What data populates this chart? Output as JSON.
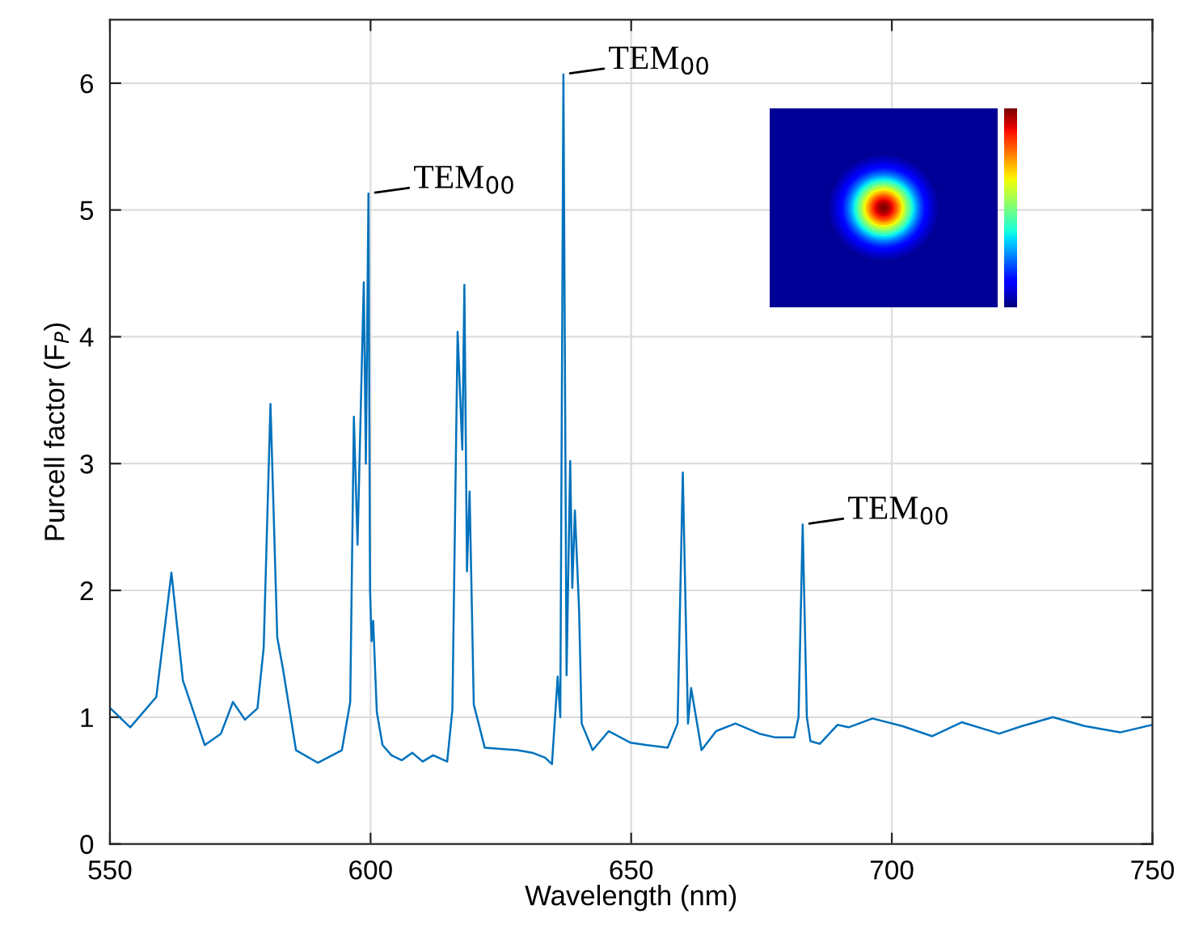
{
  "chart_data": {
    "type": "line",
    "xlabel": "Wavelength (nm)",
    "ylabel": "Purcell factor (F$_{P}$)",
    "xlim": [
      550,
      750
    ],
    "xticks": [
      550,
      600,
      650,
      700,
      750
    ],
    "ylim": [
      0,
      6.5
    ],
    "yticks": [
      0,
      1,
      2,
      3,
      4,
      5,
      6
    ],
    "grid": true,
    "series": [
      {
        "color": "#0072bd",
        "x": [
          550.1,
          553.9,
          558.9,
          561.8,
          564.0,
          568.2,
          571.3,
          573.6,
          575.9,
          578.3,
          579.5,
          580.8,
          582.1,
          583.2,
          585.7,
          589.9,
          594.5,
          596.1,
          596.8,
          597.5,
          598.7,
          599.1,
          599.6,
          599.9,
          600.2,
          600.5,
          601.2,
          602.3,
          604.0,
          606.0,
          608.0,
          610.0,
          612.0,
          614.7,
          615.7,
          616.7,
          617.6,
          618.0,
          618.5,
          619.0,
          619.8,
          621.9,
          625.0,
          628.1,
          631.0,
          633.5,
          634.8,
          635.9,
          636.4,
          637.0,
          637.6,
          638.3,
          638.7,
          639.2,
          640.0,
          640.5,
          642.6,
          645.7,
          649.8,
          653.0,
          657.0,
          658.9,
          659.9,
          660.9,
          661.5,
          663.5,
          666.3,
          670.0,
          674.6,
          677.7,
          681.3,
          682.1,
          682.9,
          683.7,
          684.4,
          686.2,
          689.6,
          691.7,
          696.3,
          702.0,
          707.7,
          713.4,
          720.6,
          725.0,
          730.9,
          737.0,
          743.8,
          750.0
        ],
        "values": [
          1.07,
          0.92,
          1.16,
          2.14,
          1.29,
          0.78,
          0.87,
          1.12,
          0.98,
          1.07,
          1.55,
          3.47,
          1.63,
          1.38,
          0.74,
          0.64,
          0.74,
          1.12,
          3.37,
          2.36,
          4.43,
          3.0,
          5.13,
          2.0,
          1.6,
          1.76,
          1.04,
          0.78,
          0.7,
          0.66,
          0.72,
          0.65,
          0.7,
          0.65,
          1.06,
          4.04,
          3.11,
          4.41,
          2.15,
          2.78,
          1.1,
          0.76,
          0.75,
          0.74,
          0.72,
          0.68,
          0.63,
          1.32,
          1.0,
          6.07,
          1.33,
          3.02,
          2.02,
          2.63,
          1.85,
          0.95,
          0.74,
          0.89,
          0.8,
          0.78,
          0.76,
          0.95,
          2.93,
          0.95,
          1.23,
          0.74,
          0.89,
          0.95,
          0.87,
          0.84,
          0.84,
          1.0,
          2.52,
          1.0,
          0.81,
          0.79,
          0.94,
          0.92,
          0.99,
          0.93,
          0.85,
          0.96,
          0.87,
          0.93,
          1.0,
          0.93,
          0.88,
          0.94
        ]
      }
    ],
    "annotations": [
      {
        "text": "TEM$_{00}$",
        "x": 599.6,
        "y": 5.13
      },
      {
        "text": "TEM$_{00}$",
        "x": 637.0,
        "y": 6.07
      },
      {
        "text": "TEM$_{00}$",
        "x": 682.9,
        "y": 2.52
      }
    ]
  }
}
